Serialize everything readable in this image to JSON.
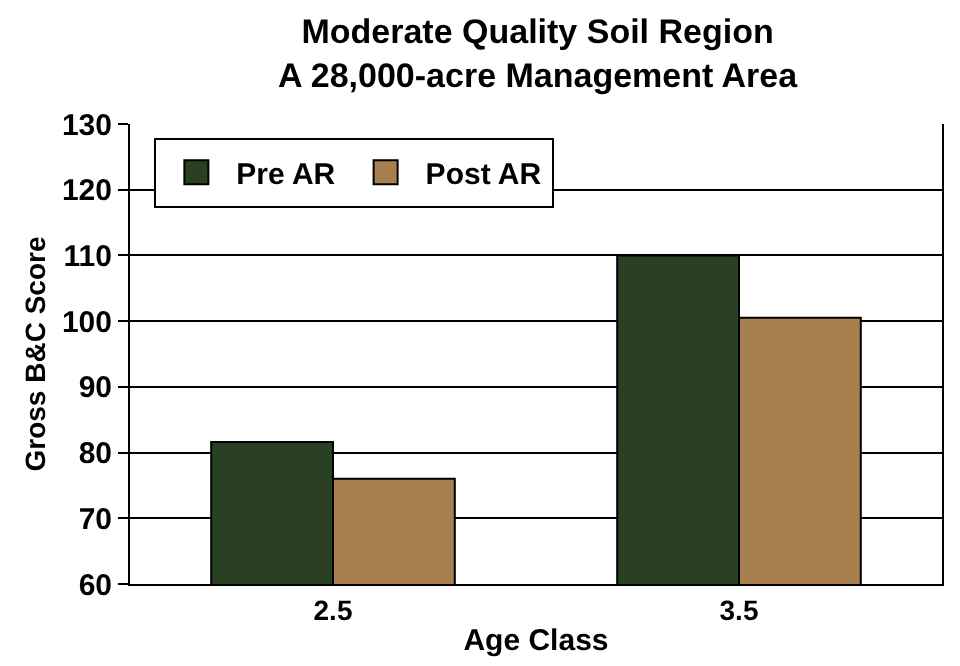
{
  "chart_data": {
    "type": "bar",
    "title": "Moderate Quality Soil Region\nA 28,000-acre Management Area",
    "xlabel": "Age Class",
    "ylabel": "Gross B&C Score",
    "categories": [
      "2.5",
      "3.5"
    ],
    "series": [
      {
        "name": "Pre AR",
        "color": "#2a4023",
        "values": [
          81.6,
          110
        ]
      },
      {
        "name": "Post AR",
        "color": "#a88050",
        "values": [
          76,
          100.5
        ]
      }
    ],
    "ylim": [
      60,
      130
    ],
    "yticks": [
      60,
      70,
      80,
      90,
      100,
      110,
      120,
      130
    ],
    "grid": "y",
    "legend": "top left"
  }
}
